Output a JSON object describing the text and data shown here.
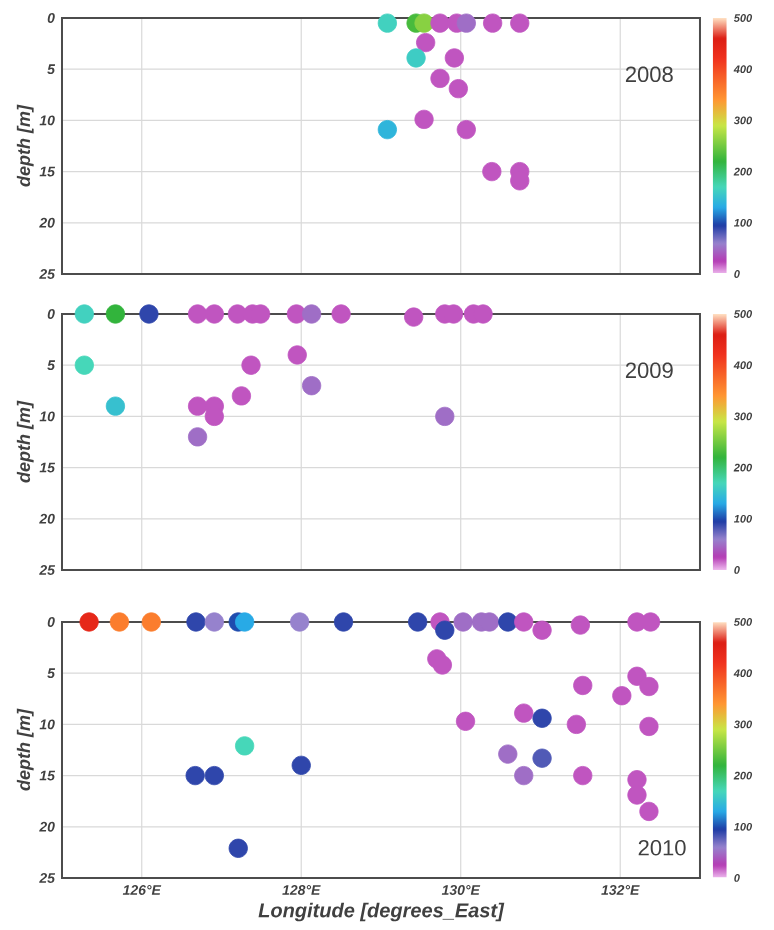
{
  "chart_data": [
    {
      "type": "scatter",
      "ylabel": "depth [m]",
      "annotations": [
        "2008"
      ],
      "marker": "circle",
      "grid": true,
      "tick_labels": "y",
      "xlim": [
        125,
        133
      ],
      "ylim": [
        25,
        0
      ],
      "xticks": [
        {
          "value": 126,
          "label": null
        },
        {
          "value": 128,
          "label": null
        },
        {
          "value": 130,
          "label": null
        },
        {
          "value": 132,
          "label": null
        }
      ],
      "yticks": [
        0,
        5,
        10,
        15,
        20,
        25
      ],
      "clim": [
        0,
        500
      ],
      "cticks": [
        0,
        100,
        200,
        300,
        400,
        500
      ],
      "x": [
        129.08,
        129.39,
        129.44,
        129.54,
        129.74,
        129.95,
        130.07,
        130.4,
        130.74,
        129.56,
        129.44,
        129.92,
        129.74,
        129.97,
        129.54,
        130.07,
        129.08,
        130.39,
        130.74,
        130.74
      ],
      "values": [
        0.5,
        null,
        0.5,
        0.5,
        0.5,
        0.5,
        0.5,
        0.5,
        0.5,
        2.4,
        3.9,
        3.9,
        5.9,
        6.9,
        9.9,
        10.9,
        10.9,
        15,
        15,
        15.9
      ],
      "cvalues": [
        165,
        null,
        230,
        260,
        20,
        20,
        50,
        20,
        20,
        20,
        160,
        20,
        20,
        20,
        20,
        20,
        140,
        20,
        20,
        20
      ]
    },
    {
      "type": "scatter",
      "ylabel": "depth [m]",
      "annotations": [
        "2009"
      ],
      "marker": "circle",
      "grid": true,
      "tick_labels": "y",
      "xlim": [
        125,
        133
      ],
      "ylim": [
        25,
        0
      ],
      "xticks": [
        {
          "value": 126,
          "label": null
        },
        {
          "value": 128,
          "label": null
        },
        {
          "value": 130,
          "label": null
        },
        {
          "value": 132,
          "label": null
        }
      ],
      "yticks": [
        0,
        5,
        10,
        15,
        20,
        25
      ],
      "clim": [
        0,
        500
      ],
      "cticks": [
        0,
        100,
        200,
        300,
        400,
        500
      ],
      "x": [
        125.28,
        125.67,
        126.09,
        126.7,
        126.91,
        127.2,
        127.39,
        127.49,
        127.94,
        128.13,
        128.5,
        129.41,
        129.8,
        129.91,
        130.16,
        130.28,
        125.28,
        125.67,
        126.7,
        126.91,
        126.91,
        126.7,
        127.25,
        127.37,
        127.95,
        128.13,
        129.8
      ],
      "values": [
        0,
        0,
        0,
        0,
        0,
        0,
        0,
        0,
        0,
        0,
        0,
        0.3,
        0,
        0,
        0,
        0,
        5,
        9,
        9,
        9,
        10,
        12,
        8,
        5,
        4,
        7,
        10
      ],
      "cvalues": [
        165,
        220,
        90,
        20,
        20,
        20,
        20,
        20,
        20,
        50,
        20,
        20,
        20,
        20,
        20,
        20,
        170,
        150,
        20,
        20,
        20,
        50,
        20,
        20,
        20,
        50,
        50
      ]
    },
    {
      "type": "scatter",
      "ylabel": "depth [m]",
      "xlabel": "Longitude [degrees_East]",
      "annotations": [
        "2010"
      ],
      "marker": "circle",
      "grid": true,
      "xlim": [
        125,
        133
      ],
      "ylim": [
        25,
        0
      ],
      "xticks": [
        {
          "value": 126,
          "label": "126°E"
        },
        {
          "value": 128,
          "label": "128°E"
        },
        {
          "value": 130,
          "label": "130°E"
        },
        {
          "value": 132,
          "label": "132°E"
        }
      ],
      "yticks": [
        0,
        5,
        10,
        15,
        20,
        25
      ],
      "clim": [
        0,
        500
      ],
      "cticks": [
        0,
        100,
        200,
        300,
        400,
        500
      ],
      "x": [
        125.34,
        125.72,
        126.12,
        126.68,
        126.91,
        127.21,
        127.29,
        127.98,
        128.53,
        129.46,
        129.74,
        129.8,
        130.03,
        130.26,
        130.36,
        130.59,
        130.79,
        131.02,
        131.5,
        132.21,
        132.38,
        129.7,
        129.77,
        130.06,
        130.79,
        131.02,
        131.45,
        131.53,
        132.02,
        132.21,
        132.36,
        132.36,
        130.59,
        131.02,
        130.79,
        131.53,
        132.21,
        132.21,
        132.36,
        127.29,
        126.67,
        126.91,
        128.0,
        127.21
      ],
      "values": [
        0,
        0,
        0,
        0,
        0,
        0,
        0,
        0,
        0,
        0,
        0,
        0.8,
        0,
        0,
        0,
        0,
        0,
        0.8,
        0.3,
        0,
        0,
        3.6,
        4.2,
        9.7,
        8.9,
        9.4,
        10,
        6.2,
        7.2,
        5.3,
        6.3,
        10.2,
        12.9,
        13.3,
        15,
        15,
        15.4,
        16.9,
        18.5,
        12.1,
        15,
        15,
        14,
        22.1
      ],
      "cvalues": [
        440,
        360,
        360,
        90,
        60,
        100,
        130,
        60,
        90,
        90,
        20,
        90,
        50,
        50,
        50,
        90,
        20,
        20,
        20,
        20,
        20,
        20,
        20,
        20,
        20,
        90,
        20,
        20,
        20,
        20,
        20,
        20,
        50,
        80,
        50,
        20,
        20,
        20,
        20,
        170,
        90,
        90,
        90,
        90
      ]
    }
  ]
}
